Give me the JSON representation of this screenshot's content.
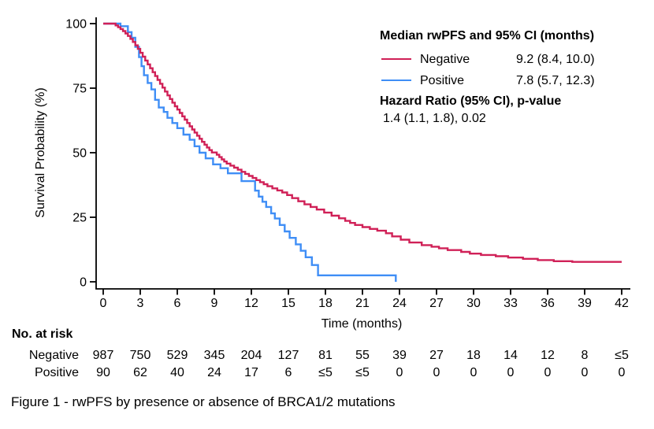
{
  "figure": {
    "caption": "Figure 1 - rwPFS by presence or absence of BRCA1/2 mutations"
  },
  "chart_data": {
    "type": "line",
    "subtype": "kaplan-meier-step",
    "title": "",
    "xlabel": "Time (months)",
    "ylabel": "Survival Probability (%)",
    "xlim": [
      0,
      42
    ],
    "ylim": [
      0,
      100
    ],
    "grid": false,
    "legend_position": "top-right",
    "x_ticks": [
      0,
      3,
      6,
      9,
      12,
      15,
      18,
      21,
      24,
      27,
      30,
      33,
      36,
      39,
      42
    ],
    "y_ticks": [
      0,
      25,
      50,
      75,
      100
    ],
    "axis_color": "#000000",
    "series": [
      {
        "name": "Negative",
        "color": "#d02057",
        "median": "9.2 (8.4, 10.0)",
        "points": [
          [
            0,
            100
          ],
          [
            1,
            99.3
          ],
          [
            1.2,
            98.6
          ],
          [
            1.4,
            97.9
          ],
          [
            1.6,
            97.1
          ],
          [
            1.8,
            96.2
          ],
          [
            2,
            95.2
          ],
          [
            2.2,
            94.1
          ],
          [
            2.4,
            92.9
          ],
          [
            2.6,
            91.6
          ],
          [
            2.8,
            90.2
          ],
          [
            3,
            88.7
          ],
          [
            3.2,
            87.2
          ],
          [
            3.4,
            85.7
          ],
          [
            3.6,
            84.2
          ],
          [
            3.8,
            82.7
          ],
          [
            4,
            81.2
          ],
          [
            4.2,
            79.7
          ],
          [
            4.4,
            78.2
          ],
          [
            4.6,
            76.7
          ],
          [
            4.8,
            75.2
          ],
          [
            5,
            73.7
          ],
          [
            5.2,
            72.2
          ],
          [
            5.4,
            70.8
          ],
          [
            5.6,
            69.4
          ],
          [
            5.8,
            68
          ],
          [
            6,
            66.7
          ],
          [
            6.2,
            65.4
          ],
          [
            6.4,
            64.1
          ],
          [
            6.6,
            62.8
          ],
          [
            6.8,
            61.5
          ],
          [
            7,
            60.2
          ],
          [
            7.2,
            59
          ],
          [
            7.4,
            57.8
          ],
          [
            7.6,
            56.6
          ],
          [
            7.8,
            55.4
          ],
          [
            8,
            54.2
          ],
          [
            8.2,
            53.1
          ],
          [
            8.4,
            52
          ],
          [
            8.6,
            51
          ],
          [
            8.8,
            50.1
          ],
          [
            9.2,
            49.2
          ],
          [
            9.4,
            48.3
          ],
          [
            9.6,
            47.4
          ],
          [
            9.8,
            46.6
          ],
          [
            10,
            45.8
          ],
          [
            10.3,
            45
          ],
          [
            10.6,
            44.2
          ],
          [
            10.9,
            43.4
          ],
          [
            11.2,
            42.6
          ],
          [
            11.5,
            41.8
          ],
          [
            11.8,
            41
          ],
          [
            12.1,
            40.2
          ],
          [
            12.4,
            39.4
          ],
          [
            12.7,
            38.6
          ],
          [
            13,
            37.8
          ],
          [
            13.3,
            37
          ],
          [
            13.7,
            36.2
          ],
          [
            14.1,
            35.4
          ],
          [
            14.5,
            34.6
          ],
          [
            14.9,
            33.6
          ],
          [
            15.3,
            32.4
          ],
          [
            15.8,
            31.2
          ],
          [
            16.3,
            30
          ],
          [
            16.8,
            29
          ],
          [
            17.3,
            28
          ],
          [
            17.9,
            26.8
          ],
          [
            18.5,
            25.6
          ],
          [
            19.1,
            24.6
          ],
          [
            19.6,
            23.6
          ],
          [
            20,
            22.8
          ],
          [
            20.4,
            22
          ],
          [
            21,
            21.2
          ],
          [
            21.6,
            20.5
          ],
          [
            22.2,
            19.8
          ],
          [
            22.9,
            18.8
          ],
          [
            23.4,
            17.6
          ],
          [
            24.1,
            16.3
          ],
          [
            24.8,
            15.2
          ],
          [
            25.8,
            14.2
          ],
          [
            26.6,
            13.6
          ],
          [
            27.2,
            13
          ],
          [
            27.9,
            12.3
          ],
          [
            29,
            11.6
          ],
          [
            29.7,
            10.9
          ],
          [
            30.6,
            10.4
          ],
          [
            31.8,
            9.9
          ],
          [
            32.8,
            9.4
          ],
          [
            34,
            8.9
          ],
          [
            35.2,
            8.4
          ],
          [
            36.5,
            8
          ],
          [
            38,
            7.7
          ],
          [
            42,
            7.7
          ]
        ]
      },
      {
        "name": "Positive",
        "color": "#3f8ef6",
        "median": "7.8 (5.7, 12.3)",
        "points": [
          [
            0,
            100
          ],
          [
            1.4,
            99
          ],
          [
            2,
            96.7
          ],
          [
            2.3,
            94.5
          ],
          [
            2.6,
            91
          ],
          [
            2.9,
            87
          ],
          [
            3.1,
            83.5
          ],
          [
            3.3,
            80
          ],
          [
            3.6,
            77
          ],
          [
            3.9,
            74.5
          ],
          [
            4.2,
            70.5
          ],
          [
            4.5,
            67.5
          ],
          [
            4.9,
            65.8
          ],
          [
            5.2,
            63.5
          ],
          [
            5.6,
            61.5
          ],
          [
            6,
            59.5
          ],
          [
            6.5,
            57
          ],
          [
            7,
            55
          ],
          [
            7.4,
            52.5
          ],
          [
            7.8,
            50
          ],
          [
            8.3,
            47.8
          ],
          [
            8.9,
            45.5
          ],
          [
            9.5,
            44
          ],
          [
            10.1,
            42
          ],
          [
            11.2,
            39
          ],
          [
            12.3,
            35.3
          ],
          [
            12.6,
            33
          ],
          [
            12.9,
            31
          ],
          [
            13.2,
            29
          ],
          [
            13.6,
            26.5
          ],
          [
            13.9,
            24.5
          ],
          [
            14.3,
            22
          ],
          [
            14.7,
            19.5
          ],
          [
            15.1,
            17
          ],
          [
            15.6,
            14.5
          ],
          [
            16,
            12
          ],
          [
            16.4,
            9.5
          ],
          [
            16.9,
            6.5
          ],
          [
            17.4,
            2.5
          ],
          [
            23.7,
            0
          ]
        ]
      }
    ]
  },
  "legend": {
    "title": "Median rwPFS and 95% CI (months)",
    "entries": [
      {
        "label": "Negative",
        "value": "9.2 (8.4, 10.0)",
        "color": "#d02057"
      },
      {
        "label": "Positive",
        "value": "7.8 (5.7, 12.3)",
        "color": "#3f8ef6"
      }
    ],
    "hr_title": "Hazard Ratio (95% CI), p-value",
    "hr_value": "1.4 (1.1, 1.8), 0.02"
  },
  "risk_table": {
    "title": "No. at risk",
    "rows": [
      {
        "label": "Negative",
        "counts": [
          "987",
          "750",
          "529",
          "345",
          "204",
          "127",
          "81",
          "55",
          "39",
          "27",
          "18",
          "14",
          "12",
          "8",
          "≤5"
        ]
      },
      {
        "label": "Positive",
        "counts": [
          "90",
          "62",
          "40",
          "24",
          "17",
          "6",
          "≤5",
          "≤5",
          "0",
          "0",
          "0",
          "0",
          "0",
          "0",
          "0"
        ]
      }
    ]
  }
}
